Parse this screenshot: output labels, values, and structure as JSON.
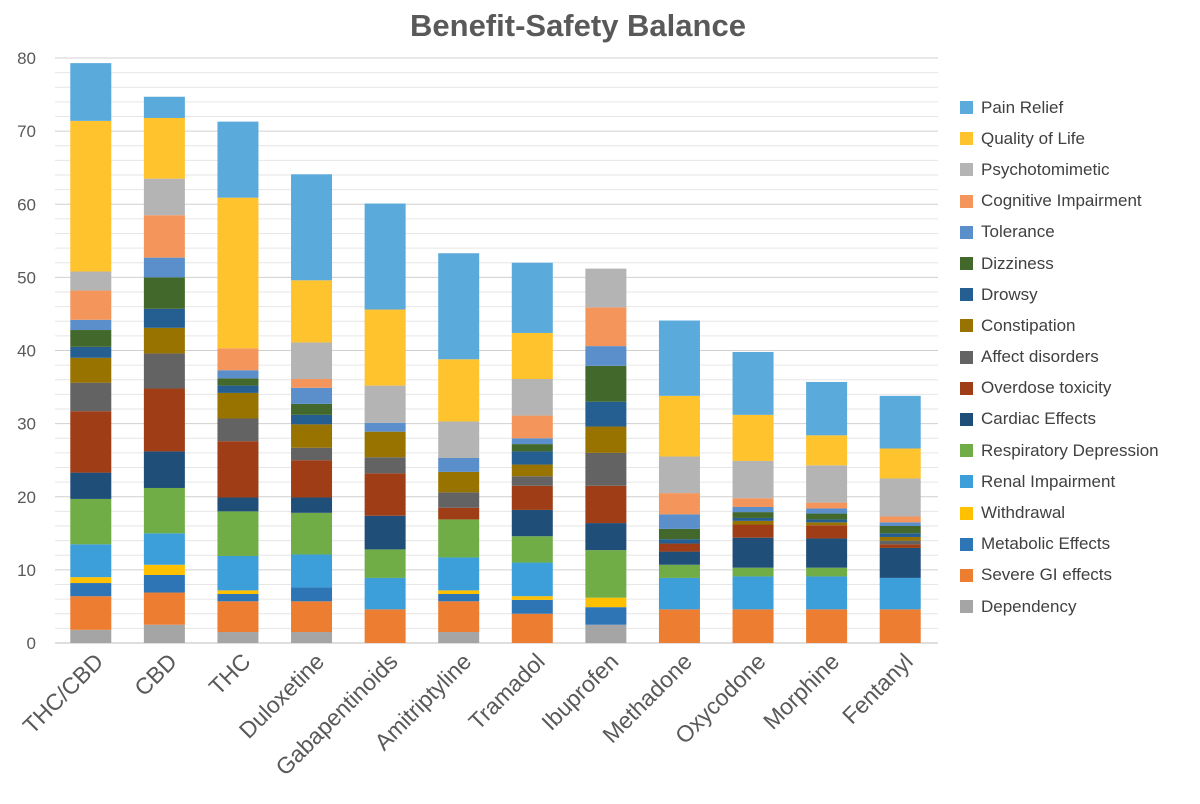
{
  "chart_data": {
    "type": "bar",
    "stacked": true,
    "title": "Benefit-Safety Balance",
    "xlabel": "",
    "ylabel": "",
    "ylim": [
      0,
      80
    ],
    "yticks": [
      0,
      10,
      20,
      30,
      40,
      50,
      60,
      70,
      80
    ],
    "grid": true,
    "legend_position": "right",
    "categories": [
      "THC/CBD",
      "CBD",
      "THC",
      "Duloxetine",
      "Gabapentinoids",
      "Amitriptyline",
      "Tramadol",
      "Ibuprofen",
      "Methadone",
      "Oxycodone",
      "Morphine",
      "Fentanyl"
    ],
    "series": [
      {
        "name": "Dependency",
        "color": "#A5A5A5",
        "values": [
          1.8,
          2.5,
          1.5,
          1.5,
          0,
          1.5,
          0,
          2.5,
          0,
          0,
          0,
          0
        ]
      },
      {
        "name": "Severe GI effects",
        "color": "#ED7D31",
        "values": [
          4.6,
          4.4,
          4.2,
          4.2,
          4.6,
          4.2,
          4.0,
          0,
          4.6,
          4.6,
          4.6,
          4.6
        ]
      },
      {
        "name": "Metabolic Effects",
        "color": "#2E75B6",
        "values": [
          1.8,
          2.4,
          1.0,
          1.9,
          0,
          1.0,
          1.9,
          2.4,
          0,
          0,
          0,
          0
        ]
      },
      {
        "name": "Withdrawal",
        "color": "#FFC000",
        "values": [
          0.8,
          1.4,
          0.5,
          0,
          0,
          0.5,
          0.5,
          1.3,
          0,
          0,
          0,
          0
        ]
      },
      {
        "name": "Renal Impairment",
        "color": "#3C9FD9",
        "values": [
          4.5,
          4.3,
          4.7,
          4.5,
          4.3,
          4.5,
          4.6,
          0,
          4.3,
          4.5,
          4.5,
          4.3
        ]
      },
      {
        "name": "Respiratory Depression",
        "color": "#70AD47",
        "values": [
          6.2,
          6.2,
          6.1,
          5.7,
          3.9,
          5.2,
          3.6,
          6.5,
          1.8,
          1.2,
          1.2,
          0
        ]
      },
      {
        "name": "Cardiac Effects",
        "color": "#1F4E79",
        "values": [
          3.6,
          5.0,
          1.9,
          2.1,
          4.6,
          0,
          3.6,
          3.7,
          1.8,
          4.1,
          4.0,
          4.1
        ]
      },
      {
        "name": "Overdose toxicity",
        "color": "#9E3D16",
        "values": [
          8.4,
          8.6,
          7.7,
          5.1,
          5.8,
          1.6,
          3.3,
          5.1,
          1.1,
          1.8,
          1.8,
          0.5
        ]
      },
      {
        "name": "Affect disorders",
        "color": "#636363",
        "values": [
          3.9,
          4.8,
          3.1,
          1.7,
          2.2,
          2.1,
          1.3,
          4.5,
          0,
          0,
          0,
          0.5
        ]
      },
      {
        "name": "Constipation",
        "color": "#997300",
        "values": [
          3.4,
          3.5,
          3.5,
          3.2,
          3.5,
          2.8,
          1.6,
          3.6,
          0,
          0.5,
          0.4,
          0.5
        ]
      },
      {
        "name": "Drowsy",
        "color": "#255E91",
        "values": [
          1.5,
          2.6,
          1.0,
          1.3,
          0,
          0,
          1.8,
          3.4,
          0.6,
          0.4,
          0.4,
          0.5
        ]
      },
      {
        "name": "Dizziness",
        "color": "#43682B",
        "values": [
          2.3,
          4.3,
          1.0,
          1.5,
          0,
          0,
          1.0,
          4.9,
          1.4,
          0.8,
          0.8,
          1.0
        ]
      },
      {
        "name": "Tolerance",
        "color": "#5A8FCB",
        "values": [
          1.4,
          2.7,
          1.1,
          2.2,
          1.2,
          1.9,
          0.8,
          2.7,
          2.0,
          0.7,
          0.7,
          0.5
        ]
      },
      {
        "name": "Cognitive Impairment",
        "color": "#F4965B",
        "values": [
          4.0,
          5.8,
          3.0,
          1.2,
          0,
          0,
          3.1,
          5.3,
          2.9,
          1.2,
          0.8,
          0.8
        ]
      },
      {
        "name": "Psychotomimetic",
        "color": "#B4B4B4",
        "values": [
          2.6,
          5.0,
          0,
          5.0,
          5.1,
          5.0,
          5.0,
          5.3,
          5.0,
          5.1,
          5.1,
          5.2
        ]
      },
      {
        "name": "Quality of Life",
        "color": "#FFC32E",
        "values": [
          20.6,
          8.3,
          20.6,
          8.5,
          10.4,
          8.5,
          6.3,
          0,
          8.3,
          6.3,
          4.1,
          4.1
        ]
      },
      {
        "name": "Pain Relief",
        "color": "#5AAADB",
        "values": [
          7.9,
          2.9,
          10.4,
          14.5,
          14.5,
          14.5,
          9.6,
          0,
          10.3,
          8.6,
          7.3,
          7.2
        ]
      }
    ]
  }
}
